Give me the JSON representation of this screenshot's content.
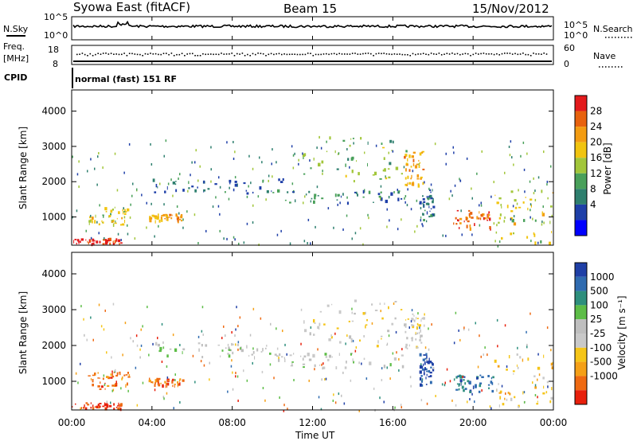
{
  "header": {
    "station": "Syowa East (fitACF)",
    "beam": "Beam 15",
    "date": "15/Nov/2012"
  },
  "noise_panel": {
    "label": "N.Sky",
    "right_label": "N.Search",
    "left_ticks": [
      "10^5",
      "10^0"
    ],
    "right_ticks": [
      "10^5",
      "10^0"
    ]
  },
  "freq_panel": {
    "label": "Freq.",
    "unit": "[MHz]",
    "left_ticks": [
      "18",
      "8"
    ],
    "right_ticks": [
      "60",
      "0"
    ],
    "right_label": "Nave"
  },
  "cpid": {
    "label": "CPID",
    "text": "normal (fast) 151 RF"
  },
  "power_panel": {
    "ylabel": "Slant Range [km]",
    "yticks": [
      "4000",
      "3000",
      "2000",
      "1000"
    ],
    "colorbar_label": "Power [dB]",
    "colorbar_ticks": [
      "28",
      "24",
      "20",
      "16",
      "12",
      "8",
      "4"
    ],
    "colors": [
      "#0000ff",
      "#1e3fa8",
      "#2e7f6e",
      "#49a05a",
      "#a2c63a",
      "#f1c40f",
      "#f39c12",
      "#e8620e",
      "#e31a1c"
    ]
  },
  "velocity_panel": {
    "ylabel": "Slant Range [km]",
    "yticks": [
      "4000",
      "3000",
      "2000",
      "1000"
    ],
    "colorbar_label": "Velocity [m s⁻¹]",
    "colorbar_ticks": [
      "1000",
      "500",
      "100",
      "25",
      "-25",
      "-100",
      "-500",
      "-1000"
    ],
    "colors": [
      "#1f3fa6",
      "#2f6bb0",
      "#2e8f7d",
      "#5dbd47",
      "#bfbfbf",
      "#c9c9c9",
      "#f5c518",
      "#f5a017",
      "#ef6a12",
      "#e8200c"
    ]
  },
  "xaxis": {
    "label": "Time UT",
    "ticks": [
      "00:00",
      "04:00",
      "08:00",
      "12:00",
      "16:00",
      "20:00",
      "00:00"
    ]
  },
  "chart_data": {
    "type": "heatmap",
    "title": "Syowa East (fitACF)",
    "xlabel": "Time UT",
    "ylabel": "Slant Range [km]",
    "xlim": [
      "00:00",
      "24:00"
    ],
    "ylim": [
      200,
      4600
    ],
    "grid": false,
    "bands": [
      {
        "t": [
          0.0,
          2.5
        ],
        "r": [
          260,
          420
        ],
        "power": 28,
        "velocity": -1000
      },
      {
        "t": [
          0.8,
          2.8
        ],
        "r": [
          800,
          1300
        ],
        "power": 16,
        "velocity": -500
      },
      {
        "t": [
          3.8,
          5.5
        ],
        "r": [
          900,
          1100
        ],
        "power": 20,
        "velocity": -500
      },
      {
        "t": [
          4.0,
          10.5
        ],
        "r": [
          1700,
          2100
        ],
        "power": 6,
        "velocity": 25
      },
      {
        "t": [
          10.0,
          16.5
        ],
        "r": [
          1400,
          1800
        ],
        "power": 6,
        "velocity": 25
      },
      {
        "t": [
          11.5,
          16.8
        ],
        "r": [
          2000,
          3300
        ],
        "power": 12,
        "velocity": -25
      },
      {
        "t": [
          16.5,
          17.5
        ],
        "r": [
          1900,
          2900
        ],
        "power": 20,
        "velocity": -25
      },
      {
        "t": [
          17.3,
          18.0
        ],
        "r": [
          900,
          1800
        ],
        "power": 6,
        "velocity": 1000
      },
      {
        "t": [
          19.0,
          21.0
        ],
        "r": [
          700,
          1200
        ],
        "power": 24,
        "velocity": 500
      },
      {
        "t": [
          21.0,
          24.0
        ],
        "r": [
          300,
          1800
        ],
        "power": 16,
        "velocity": -100
      }
    ]
  }
}
